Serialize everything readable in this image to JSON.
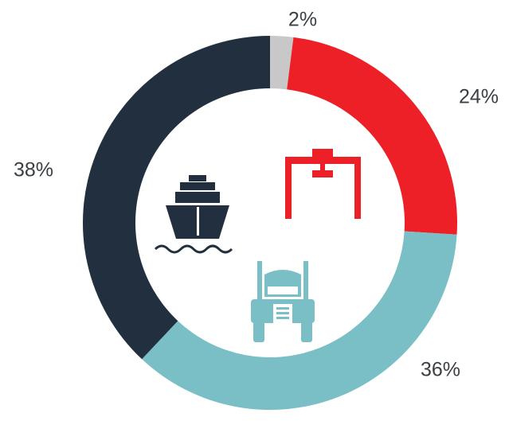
{
  "chart_data": {
    "type": "pie",
    "donut": true,
    "values": [
      2,
      24,
      36,
      38
    ],
    "value_labels": [
      "2%",
      "24%",
      "36%",
      "38%"
    ],
    "colors": [
      "#c8c8c8",
      "#ee2027",
      "#7bbfc6",
      "#212f3f"
    ]
  }
}
